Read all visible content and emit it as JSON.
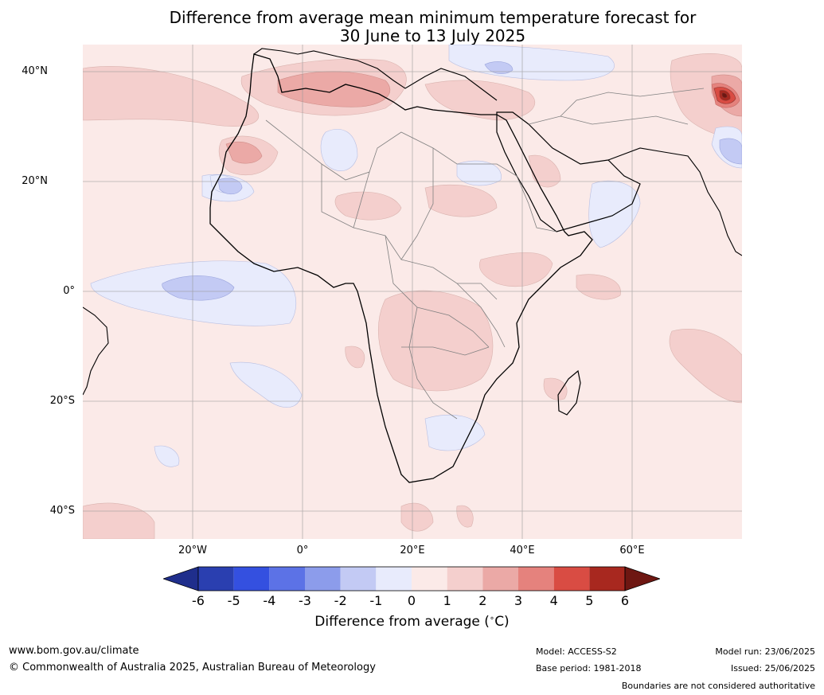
{
  "title": {
    "line1": "Difference from average mean minimum temperature forecast for",
    "line2": "30 June to 13 July 2025"
  },
  "lat_labels": [
    "40°N",
    "20°N",
    "0°",
    "20°S",
    "40°S"
  ],
  "lon_labels": [
    "20°W",
    "0°",
    "20°E",
    "40°E",
    "60°E"
  ],
  "colorbar": {
    "ticks": [
      "-6",
      "-5",
      "-4",
      "-3",
      "-2",
      "-1",
      "0",
      "1",
      "2",
      "3",
      "4",
      "5",
      "6"
    ],
    "colors": [
      "#1f2e8c",
      "#2a3fb0",
      "#3450e0",
      "#5c72e6",
      "#8c9ceb",
      "#c3caf4",
      "#e8ebfc",
      "#fbeae8",
      "#f4cfcd",
      "#eba9a6",
      "#e5827d",
      "#d94c43",
      "#a8281f",
      "#6e1712"
    ],
    "label": "Difference from average ($^\\circ$C)"
  },
  "footer": {
    "url": "www.bom.gov.au/climate",
    "copyright": "© Commonwealth of Australia 2025, Australian Bureau of Meteorology",
    "model": "Model: ACCESS-S2",
    "base_period": "Base period: 1981-2018",
    "model_run": "Model run: 23/06/2025",
    "issued": "Issued: 25/06/2025",
    "disclaimer": "Boundaries are not considered authoritative"
  }
}
